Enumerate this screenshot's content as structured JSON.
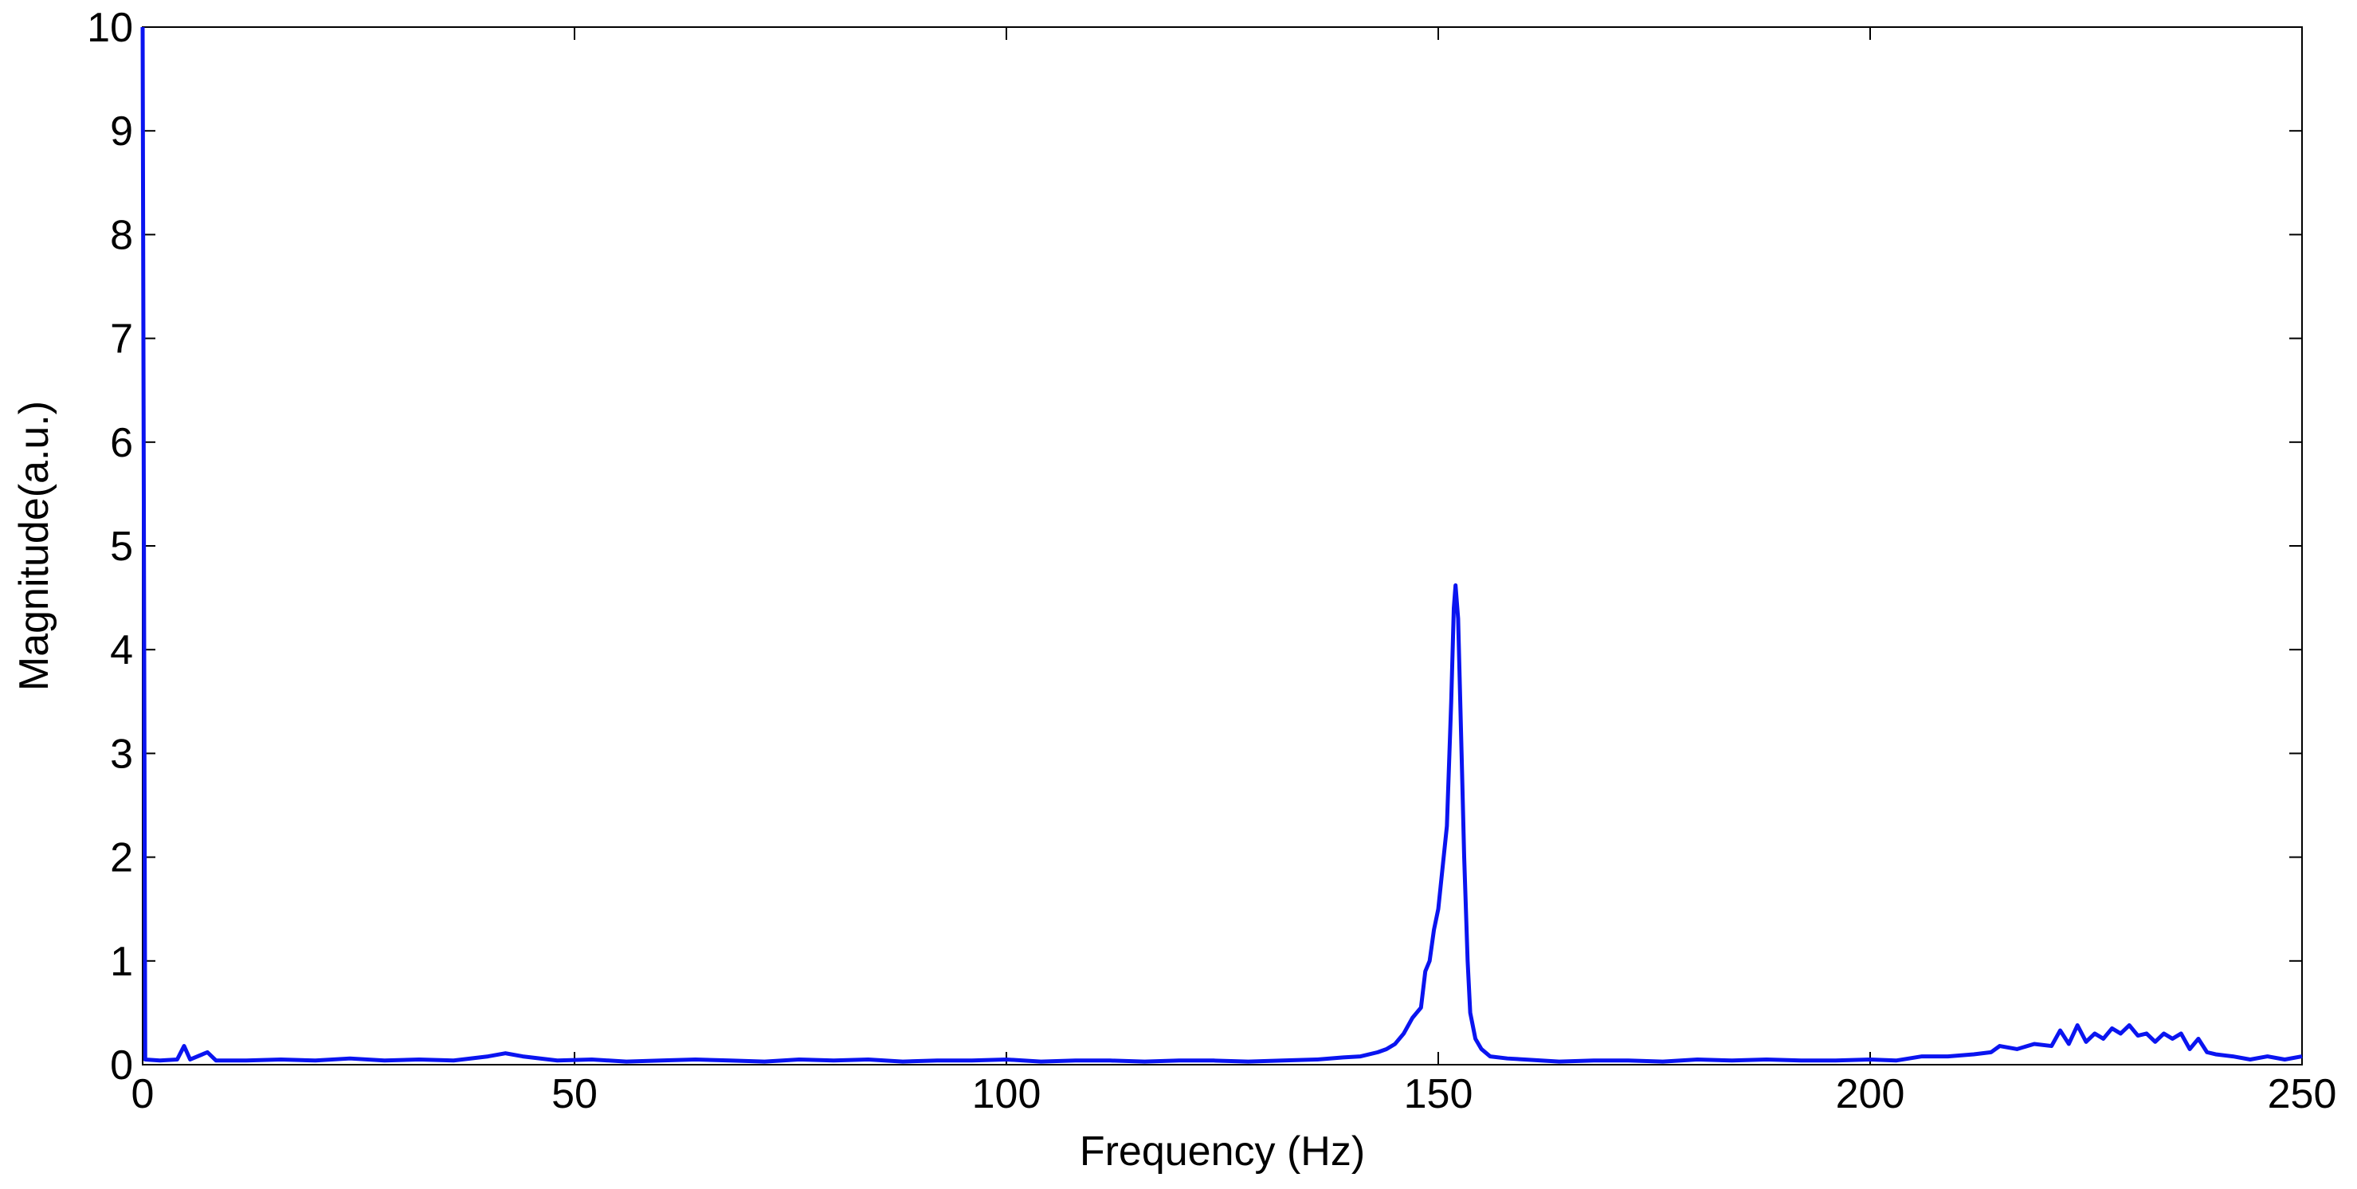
{
  "chart_data": {
    "type": "line",
    "xlabel": "Frequency (Hz)",
    "ylabel": "Magnitude(a.u.)",
    "xlim": [
      0,
      250
    ],
    "xticks": [
      0,
      50,
      100,
      150,
      200,
      250
    ],
    "ylim": [
      0,
      10
    ],
    "yticks": [
      0,
      1,
      2,
      3,
      4,
      5,
      6,
      7,
      8,
      9,
      10
    ],
    "grid": false,
    "x": [
      0,
      0.3,
      2,
      4,
      4.8,
      5.5,
      7.5,
      8.5,
      12,
      16,
      20,
      24,
      28,
      32,
      36,
      40,
      42,
      44,
      48,
      52,
      56,
      60,
      64,
      68,
      72,
      76,
      80,
      84,
      88,
      92,
      96,
      100,
      104,
      108,
      112,
      116,
      120,
      124,
      128,
      132,
      136,
      139,
      141,
      143,
      144,
      145,
      146,
      147,
      148,
      148.5,
      149,
      149.5,
      150,
      150.5,
      151,
      151.5,
      151.8,
      152,
      152.3,
      152.7,
      153,
      153.4,
      153.7,
      154.3,
      155,
      156,
      158,
      160,
      164,
      168,
      172,
      176,
      180,
      184,
      188,
      192,
      196,
      200,
      203,
      206,
      209,
      212,
      214,
      215,
      217,
      219,
      221,
      222,
      223,
      224,
      225,
      226,
      227,
      228,
      229,
      230,
      231,
      232,
      233,
      234,
      235,
      236,
      237,
      238,
      239,
      240,
      242,
      244,
      246,
      248,
      250
    ],
    "series": [
      {
        "color": "#0a14f0",
        "values": [
          10,
          0.05,
          0.04,
          0.05,
          0.18,
          0.05,
          0.12,
          0.04,
          0.04,
          0.05,
          0.04,
          0.06,
          0.04,
          0.05,
          0.04,
          0.08,
          0.11,
          0.08,
          0.04,
          0.05,
          0.03,
          0.04,
          0.05,
          0.04,
          0.03,
          0.05,
          0.04,
          0.05,
          0.03,
          0.04,
          0.04,
          0.05,
          0.03,
          0.04,
          0.04,
          0.03,
          0.04,
          0.04,
          0.03,
          0.04,
          0.05,
          0.07,
          0.08,
          0.12,
          0.15,
          0.2,
          0.3,
          0.45,
          0.55,
          0.9,
          1.0,
          1.3,
          1.5,
          1.9,
          2.3,
          3.5,
          4.4,
          4.62,
          4.3,
          3.0,
          2.0,
          1.0,
          0.5,
          0.25,
          0.15,
          0.08,
          0.06,
          0.05,
          0.03,
          0.04,
          0.04,
          0.03,
          0.05,
          0.04,
          0.05,
          0.04,
          0.04,
          0.05,
          0.04,
          0.08,
          0.08,
          0.1,
          0.12,
          0.18,
          0.15,
          0.2,
          0.18,
          0.33,
          0.2,
          0.38,
          0.22,
          0.3,
          0.25,
          0.35,
          0.3,
          0.38,
          0.28,
          0.3,
          0.22,
          0.3,
          0.25,
          0.3,
          0.15,
          0.25,
          0.12,
          0.1,
          0.08,
          0.05,
          0.08,
          0.05,
          0.08
        ]
      }
    ]
  }
}
